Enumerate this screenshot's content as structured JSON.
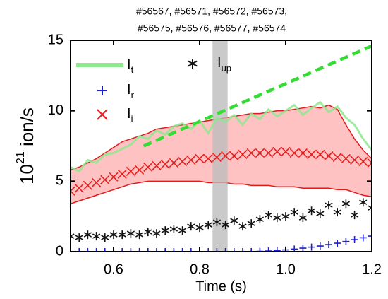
{
  "chart_data": {
    "type": "line",
    "title": [
      "#56567, #56571, #56572, #56573,",
      "#56575, #56576, #56577, #56574"
    ],
    "xlabel": "Time (s)",
    "ylabel": {
      "base": "10",
      "exponent": "21",
      "unit": " ion/s"
    },
    "xlim": [
      0.5,
      1.2
    ],
    "ylim": [
      0,
      15
    ],
    "xticks": [
      0.6,
      0.8,
      {
        "value": 1,
        "label": "1.0"
      },
      1.2
    ],
    "yticks": [
      0,
      5,
      10,
      15
    ],
    "highlight": {
      "xlim": [
        0.83,
        0.865
      ],
      "color": "#bdbdbd"
    },
    "x": [
      0.5,
      0.52,
      0.54,
      0.56,
      0.58,
      0.6,
      0.62,
      0.64,
      0.66,
      0.68,
      0.7,
      0.72,
      0.74,
      0.76,
      0.78,
      0.8,
      0.82,
      0.84,
      0.86,
      0.88,
      0.9,
      0.92,
      0.94,
      0.96,
      0.98,
      1.0,
      1.02,
      1.04,
      1.06,
      1.08,
      1.1,
      1.12,
      1.14,
      1.16,
      1.18,
      1.2
    ],
    "band": {
      "color": "#ff9a9a",
      "edge": "#e31a1c",
      "upper": [
        5.8,
        6.0,
        6.3,
        6.6,
        7.0,
        7.4,
        7.8,
        8.0,
        8.2,
        8.4,
        8.7,
        8.8,
        8.9,
        9.0,
        9.1,
        9.2,
        9.3,
        9.4,
        9.5,
        9.6,
        9.7,
        9.8,
        9.8,
        9.9,
        10.0,
        10.0,
        10.1,
        10.2,
        10.3,
        10.2,
        10.4,
        10.1,
        9.0,
        8.0,
        7.2,
        6.6
      ],
      "lower": [
        3.4,
        3.6,
        3.8,
        4.0,
        4.2,
        4.4,
        4.6,
        4.8,
        4.9,
        5.0,
        5.0,
        5.0,
        5.0,
        5.0,
        5.0,
        5.0,
        4.9,
        4.9,
        4.9,
        4.8,
        4.8,
        4.7,
        4.7,
        4.7,
        4.6,
        4.6,
        4.6,
        4.5,
        4.5,
        4.5,
        4.5,
        4.4,
        4.4,
        4.2,
        4.0,
        3.9
      ]
    },
    "series": [
      {
        "name": "I",
        "name_subscript": "t",
        "style": "line",
        "color": "#8fe88f",
        "values": [
          6.0,
          5.7,
          6.5,
          6.3,
          6.9,
          7.0,
          7.3,
          7.6,
          8.2,
          8.0,
          8.6,
          8.3,
          8.9,
          9.1,
          8.7,
          9.3,
          8.4,
          9.5,
          9.2,
          9.7,
          9.0,
          9.8,
          9.4,
          10.1,
          9.6,
          10.0,
          10.4,
          9.7,
          10.2,
          10.6,
          9.9,
          10.3,
          9.5,
          9.0,
          8.0,
          7.2
        ]
      },
      {
        "name": "I",
        "name_subscript": "r",
        "style": "plus",
        "color": "#1f1fd0",
        "values": [
          0,
          0,
          0,
          0,
          0,
          0,
          0,
          0,
          0,
          0,
          0,
          0,
          0,
          0,
          0,
          0,
          0,
          0,
          0,
          0,
          0,
          0,
          0.02,
          0.05,
          0.08,
          0.12,
          0.18,
          0.25,
          0.32,
          0.4,
          0.5,
          0.6,
          0.72,
          0.85,
          0.98,
          1.1
        ]
      },
      {
        "name": "I",
        "name_subscript": "i",
        "style": "cross",
        "color": "#ee1c1c",
        "values": [
          4.3,
          4.5,
          4.7,
          4.9,
          5.1,
          5.3,
          5.5,
          5.7,
          5.8,
          6.0,
          6.1,
          6.2,
          6.3,
          6.4,
          6.5,
          6.6,
          6.6,
          6.7,
          6.8,
          6.8,
          6.9,
          7.0,
          7.0,
          7.0,
          7.1,
          7.1,
          7.0,
          7.0,
          6.9,
          6.9,
          6.8,
          6.7,
          6.6,
          6.5,
          6.4,
          6.3
        ]
      },
      {
        "name": "I",
        "name_subscript": "up",
        "style": "star",
        "color": "#111111",
        "values": [
          1.1,
          1.0,
          1.2,
          1.1,
          1.0,
          1.2,
          1.2,
          1.3,
          1.2,
          1.4,
          1.3,
          1.5,
          1.6,
          1.5,
          1.8,
          1.7,
          1.9,
          2.1,
          1.9,
          2.2,
          1.8,
          2.0,
          2.3,
          2.6,
          2.4,
          2.5,
          2.8,
          2.4,
          2.9,
          2.7,
          3.3,
          2.8,
          3.4,
          2.6,
          3.5,
          3.1
        ]
      },
      {
        "style": "dashed",
        "color": "#33dd33",
        "x": [
          0.67,
          1.2
        ],
        "values": [
          7.5,
          14.6
        ]
      }
    ]
  }
}
